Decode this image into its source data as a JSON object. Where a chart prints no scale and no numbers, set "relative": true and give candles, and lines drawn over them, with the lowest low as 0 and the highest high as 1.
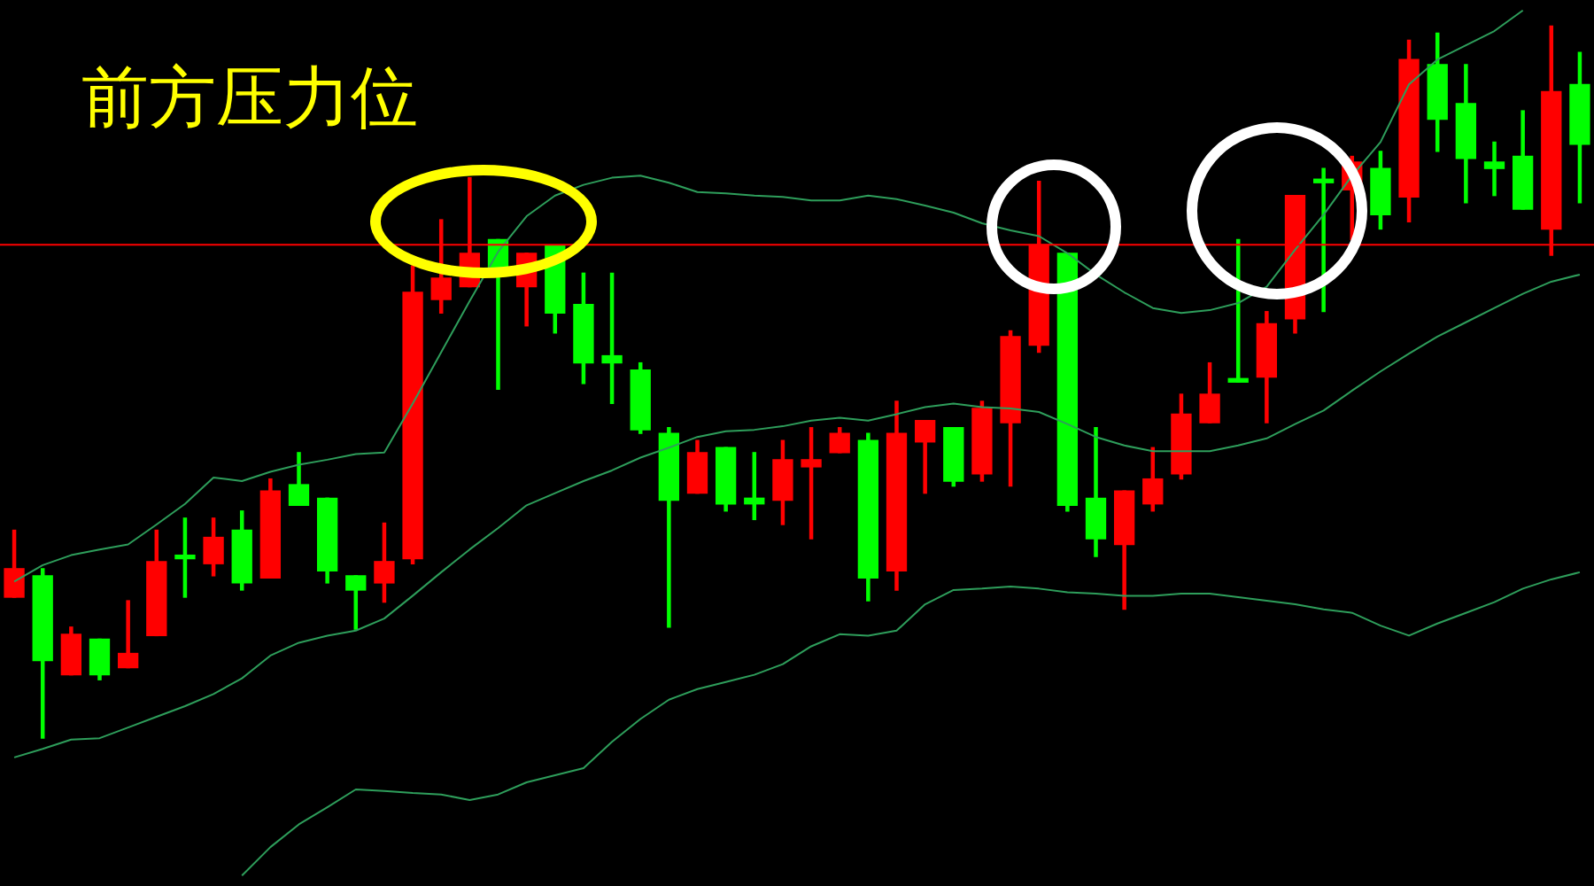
{
  "chart_data": {
    "type": "candlestick",
    "title": "前方压力位",
    "relative": true,
    "legend": false,
    "tick_labels": false,
    "categories": [
      null,
      null,
      null,
      null,
      null,
      null,
      null,
      null,
      null,
      null,
      null,
      null,
      null,
      null,
      null,
      null,
      null,
      null,
      null,
      null,
      null,
      null,
      null,
      null,
      null,
      null,
      null,
      null,
      null,
      null,
      null,
      null,
      null,
      null,
      null,
      null,
      null,
      null,
      null,
      null,
      null,
      null,
      null,
      null,
      null,
      null,
      null,
      null,
      null,
      null,
      null,
      null,
      null,
      null,
      null,
      null
    ],
    "ohlc": [
      [
        0.198,
        0.292,
        0.198,
        0.238
      ],
      [
        0.228,
        0.238,
        0,
        0.109
      ],
      [
        0.089,
        0.156,
        0.089,
        0.146
      ],
      [
        0.139,
        0.139,
        0.082,
        0.089
      ],
      [
        0.099,
        0.193,
        0.099,
        0.119
      ],
      [
        0.144,
        0.292,
        0.144,
        0.248
      ],
      [
        0.255,
        0.309,
        0.198,
        0.252
      ],
      [
        0.245,
        0.309,
        0.228,
        0.282
      ],
      [
        0.292,
        0.319,
        0.208,
        0.218
      ],
      [
        0.225,
        0.364,
        0.225,
        0.347
      ],
      [
        0.356,
        0.401,
        0.327,
        0.327
      ],
      [
        0.337,
        0.337,
        0.218,
        0.235
      ],
      [
        0.228,
        0.228,
        0.153,
        0.208
      ],
      [
        0.218,
        0.302,
        0.191,
        0.248
      ],
      [
        0.252,
        0.663,
        0.245,
        0.626
      ],
      [
        0.616,
        0.728,
        0.597,
        0.646
      ],
      [
        0.634,
        0.787,
        0.634,
        0.681
      ],
      [
        0.7,
        0.7,
        0.49,
        0.651
      ],
      [
        0.634,
        0.681,
        0.579,
        0.681
      ],
      [
        0.691,
        0.691,
        0.569,
        0.597
      ],
      [
        0.609,
        0.653,
        0.498,
        0.527
      ],
      [
        0.537,
        0.653,
        0.47,
        0.527
      ],
      [
        0.517,
        0.527,
        0.428,
        0.433
      ],
      [
        0.428,
        0.436,
        0.156,
        0.334
      ],
      [
        0.344,
        0.418,
        0.344,
        0.401
      ],
      [
        0.408,
        0.408,
        0.319,
        0.329
      ],
      [
        0.337,
        0.401,
        0.307,
        0.329
      ],
      [
        0.334,
        0.418,
        0.3,
        0.391
      ],
      [
        0.381,
        0.436,
        0.28,
        0.391
      ],
      [
        0.401,
        0.436,
        0.401,
        0.428
      ],
      [
        0.418,
        0.428,
        0.193,
        0.225
      ],
      [
        0.235,
        0.473,
        0.208,
        0.428
      ],
      [
        0.416,
        0.446,
        0.344,
        0.446
      ],
      [
        0.436,
        0.436,
        0.354,
        0.361
      ],
      [
        0.371,
        0.473,
        0.361,
        0.463
      ],
      [
        0.443,
        0.572,
        0.354,
        0.564
      ],
      [
        0.552,
        0.782,
        0.542,
        0.693
      ],
      [
        0.681,
        0.681,
        0.319,
        0.327
      ],
      [
        0.337,
        0.436,
        0.255,
        0.28
      ],
      [
        0.272,
        0.347,
        0.181,
        0.347
      ],
      [
        0.329,
        0.408,
        0.319,
        0.364
      ],
      [
        0.371,
        0.483,
        0.364,
        0.455
      ],
      [
        0.443,
        0.527,
        0.443,
        0.483
      ],
      [
        0.502,
        0.7,
        0.5,
        0.5
      ],
      [
        0.507,
        0.599,
        0.443,
        0.582
      ],
      [
        0.589,
        0.762,
        0.569,
        0.762
      ],
      [
        0.782,
        0.8,
        0.599,
        0.78
      ],
      [
        0.77,
        0.817,
        0.7,
        0.809
      ],
      [
        0.8,
        0.824,
        0.715,
        0.735
      ],
      [
        0.76,
        0.98,
        0.725,
        0.953
      ],
      [
        0.946,
        0.99,
        0.824,
        0.869
      ],
      [
        0.891,
        0.946,
        0.752,
        0.814
      ],
      [
        0.809,
        0.837,
        0.762,
        0.8
      ],
      [
        0.817,
        0.881,
        0.743,
        0.743
      ],
      [
        0.715,
        1,
        0.678,
        0.908
      ],
      [
        0.918,
        0.963,
        0.752,
        0.834
      ]
    ],
    "colors": [
      "#ff0000",
      "#00ff00",
      "#ff0000",
      "#00ff00",
      "#ff0000",
      "#ff0000",
      "#00ff00",
      "#ff0000",
      "#00ff00",
      "#ff0000",
      "#00ff00",
      "#00ff00",
      "#00ff00",
      "#ff0000",
      "#ff0000",
      "#ff0000",
      "#ff0000",
      "#00ff00",
      "#ff0000",
      "#00ff00",
      "#00ff00",
      "#00ff00",
      "#00ff00",
      "#00ff00",
      "#ff0000",
      "#00ff00",
      "#00ff00",
      "#ff0000",
      "#ff0000",
      "#ff0000",
      "#00ff00",
      "#ff0000",
      "#ff0000",
      "#00ff00",
      "#ff0000",
      "#ff0000",
      "#ff0000",
      "#00ff00",
      "#00ff00",
      "#ff0000",
      "#ff0000",
      "#ff0000",
      "#ff0000",
      "#00ff00",
      "#ff0000",
      "#ff0000",
      "#00ff00",
      "#ff0000",
      "#00ff00",
      "#ff0000",
      "#00ff00",
      "#00ff00",
      "#00ff00",
      "#00ff00",
      "#ff0000",
      "#00ff00"
    ],
    "series": [
      {
        "type": "line",
        "color": "#2e9e5b",
        "values": [
          0.22,
          0.243,
          0.257,
          0.265,
          0.272,
          0.3,
          0.329,
          0.366,
          0.361,
          0.374,
          0.384,
          0.391,
          0.399,
          0.401,
          0.47,
          0.542,
          0.614,
          0.683,
          0.733,
          0.762,
          0.777,
          0.787,
          0.79,
          0.78,
          0.767,
          0.765,
          0.762,
          0.76,
          0.755,
          0.755,
          0.762,
          0.757,
          0.748,
          0.738,
          0.723,
          0.713,
          0.705,
          0.681,
          0.651,
          0.626,
          0.604,
          0.597,
          0.601,
          0.611,
          0.634,
          0.686,
          0.735,
          0.79,
          0.837,
          0.918,
          0.953,
          0.973,
          0.993,
          1.022,
          null,
          null
        ]
      },
      {
        "type": "line",
        "color": "#2e9e5b",
        "values": [
          -0.027,
          -0.015,
          -0.002,
          0.0,
          0.015,
          0.03,
          0.045,
          0.062,
          0.084,
          0.116,
          0.134,
          0.144,
          0.151,
          0.168,
          0.2,
          0.233,
          0.265,
          0.295,
          0.327,
          0.344,
          0.361,
          0.376,
          0.394,
          0.408,
          0.423,
          0.431,
          0.433,
          0.438,
          0.446,
          0.45,
          0.446,
          0.455,
          0.465,
          0.47,
          0.465,
          0.463,
          0.458,
          0.441,
          0.423,
          0.411,
          0.403,
          0.403,
          0.403,
          0.411,
          0.421,
          0.441,
          0.46,
          0.488,
          0.515,
          0.54,
          0.564,
          0.584,
          0.604,
          0.624,
          0.641,
          0.651
        ]
      },
      {
        "type": "line",
        "color": "#2e9e5b",
        "values": [
          null,
          null,
          null,
          null,
          null,
          null,
          null,
          null,
          -0.193,
          -0.153,
          -0.121,
          -0.097,
          -0.072,
          -0.074,
          -0.077,
          -0.079,
          -0.087,
          -0.079,
          -0.062,
          -0.052,
          -0.042,
          -0.005,
          0.027,
          0.054,
          0.069,
          0.079,
          0.089,
          0.104,
          0.129,
          0.146,
          0.144,
          0.151,
          0.188,
          0.208,
          0.21,
          0.213,
          0.21,
          0.205,
          0.203,
          0.2,
          0.2,
          0.203,
          0.203,
          0.198,
          0.193,
          0.188,
          0.181,
          0.176,
          0.158,
          0.144,
          0.161,
          0.176,
          0.191,
          0.21,
          0.223,
          0.233
        ]
      }
    ],
    "ref_lines": [
      {
        "axis": "y",
        "value": 0.693,
        "color": "#ff0000"
      }
    ]
  }
}
